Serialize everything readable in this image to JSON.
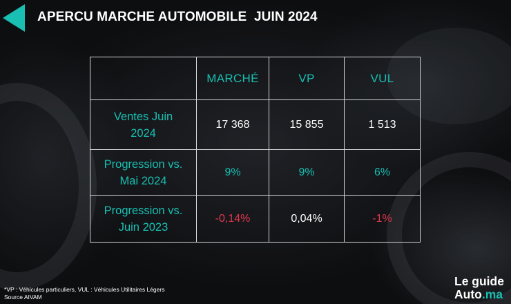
{
  "colors": {
    "accent": "#18bfb2",
    "negative": "#e0374d",
    "text": "#ffffff",
    "border": "#d8d8d8"
  },
  "header": {
    "back_icon": "back-arrow-icon",
    "title": "APERCU MARCHE AUTOMOBILE  JUIN 2024"
  },
  "table": {
    "columns": [
      "MARCHÉ",
      "VP",
      "VUL"
    ],
    "rows": [
      {
        "label_line1": "Ventes Juin",
        "label_line2": "2024",
        "values": [
          "17 368",
          "15 855",
          "1 513"
        ]
      },
      {
        "label_line1": "Progression vs.",
        "label_line2": "Mai 2024",
        "values": [
          "9%",
          "9%",
          "6%"
        ]
      },
      {
        "label_line1": "Progression vs.",
        "label_line2": "Juin 2023",
        "values": [
          "-0,14%",
          "0,04%",
          "-1%"
        ]
      }
    ]
  },
  "footnote": {
    "line1": "*VP : Véhicules particuliers, VUL : Véhicules Utilitaires Légers",
    "line2": "Source AIVAM"
  },
  "brand": {
    "line1": "Le guide",
    "line2_main": "Auto",
    "line2_tld": ".ma"
  }
}
